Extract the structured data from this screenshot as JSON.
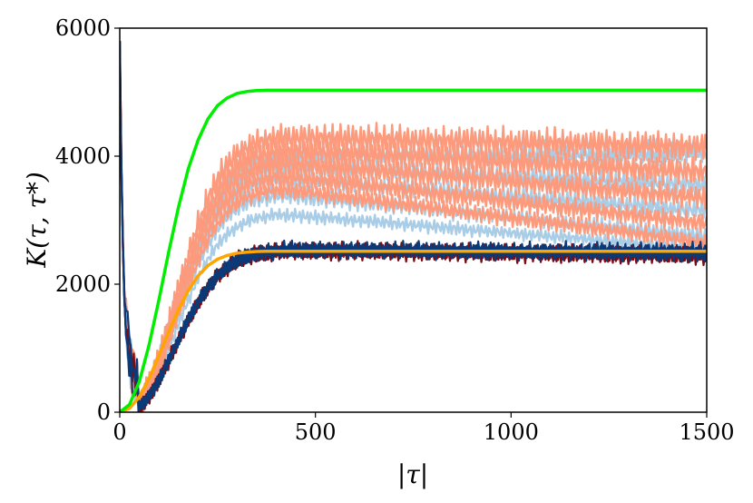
{
  "chart_data": {
    "type": "line",
    "xlabel": "|τ|",
    "ylabel": "K(τ, τ*)",
    "xlim": [
      0,
      1500
    ],
    "ylim": [
      0,
      6000
    ],
    "x_ticks": [
      "0",
      "500",
      "1000",
      "1500"
    ],
    "y_ticks": [
      "0",
      "2000",
      "4000",
      "6000"
    ],
    "grid": false,
    "legend": "none",
    "colors": {
      "green": "#00ee00",
      "orange": "#ffa500",
      "light_red": "#fb9a7c",
      "light_blue": "#a9cde6",
      "dark_red": "#7f0a10",
      "dark_blue": "#0a3a78"
    },
    "series": [
      {
        "color": "green",
        "kind": "smooth",
        "x": [
          0,
          25,
          50,
          75,
          100,
          125,
          150,
          175,
          200,
          225,
          250,
          275,
          300,
          325,
          350,
          375,
          400,
          425,
          450,
          500,
          750,
          1000,
          1250,
          1500
        ],
        "y": [
          0,
          120,
          480,
          1050,
          1750,
          2500,
          3200,
          3800,
          4250,
          4580,
          4790,
          4910,
          4980,
          5010,
          5025,
          5030,
          5030,
          5030,
          5030,
          5030,
          5030,
          5030,
          5030,
          5030
        ]
      },
      {
        "color": "orange",
        "kind": "smooth",
        "x": [
          0,
          25,
          50,
          75,
          100,
          125,
          150,
          175,
          200,
          225,
          250,
          275,
          300,
          325,
          350,
          375,
          400,
          450,
          500,
          750,
          1000,
          1250,
          1500
        ],
        "y": [
          0,
          60,
          240,
          525,
          880,
          1250,
          1600,
          1900,
          2130,
          2290,
          2390,
          2450,
          2485,
          2500,
          2510,
          2515,
          2515,
          2515,
          2515,
          2515,
          2515,
          2515,
          2515
        ]
      },
      {
        "color": "light_red",
        "kind": "noisy",
        "final": 4150,
        "peak": 4300,
        "amp": 260
      },
      {
        "color": "light_red",
        "kind": "noisy",
        "final": 3750,
        "peak": 4100,
        "amp": 240
      },
      {
        "color": "light_red",
        "kind": "noisy",
        "final": 3350,
        "peak": 3900,
        "amp": 200
      },
      {
        "color": "light_red",
        "kind": "noisy",
        "final": 2950,
        "peak": 3700,
        "amp": 180
      },
      {
        "color": "light_red",
        "kind": "noisy",
        "final": 2650,
        "peak": 3500,
        "amp": 150
      },
      {
        "color": "light_blue",
        "kind": "noisy",
        "final": 4050,
        "peak": 4000,
        "amp": 230
      },
      {
        "color": "light_blue",
        "kind": "noisy",
        "final": 3550,
        "peak": 3850,
        "amp": 210
      },
      {
        "color": "light_blue",
        "kind": "noisy",
        "final": 3150,
        "peak": 3650,
        "amp": 180
      },
      {
        "color": "light_blue",
        "kind": "noisy",
        "final": 2750,
        "peak": 3400,
        "amp": 150
      },
      {
        "color": "light_blue",
        "kind": "noisy",
        "final": 2550,
        "peak": 3100,
        "amp": 120
      },
      {
        "color": "dark_red",
        "kind": "noisy",
        "final": 2480,
        "peak": 2550,
        "amp": 140
      },
      {
        "color": "dark_red",
        "kind": "noisy",
        "final": 2420,
        "peak": 2500,
        "amp": 130
      },
      {
        "color": "dark_blue",
        "kind": "noisy",
        "final": 2530,
        "peak": 2560,
        "amp": 140
      },
      {
        "color": "dark_blue",
        "kind": "noisy",
        "final": 2460,
        "peak": 2520,
        "amp": 130
      }
    ]
  }
}
